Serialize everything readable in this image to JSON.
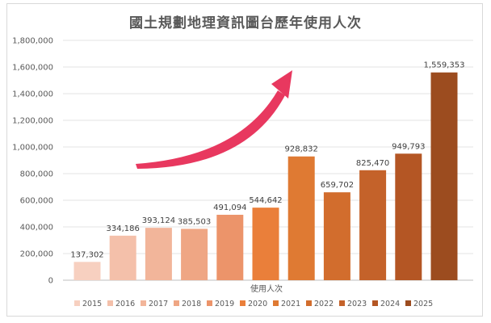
{
  "chart_data": {
    "type": "bar",
    "title": "國土規劃地理資訊圖台歷年使用人次",
    "xlabel": "使用人次",
    "ylabel": "",
    "ylim": [
      0,
      1800000
    ],
    "yticks": [
      "0",
      "200,000",
      "400,000",
      "600,000",
      "800,000",
      "1,000,000",
      "1,200,000",
      "1,400,000",
      "1,600,000",
      "1,800,000"
    ],
    "categories": [
      "2015",
      "2016",
      "2017",
      "2018",
      "2019",
      "2020",
      "2021",
      "2022",
      "2023",
      "2024",
      "2025"
    ],
    "values": [
      137302,
      334186,
      393124,
      385503,
      491094,
      544642,
      928832,
      659702,
      825470,
      949793,
      1559353
    ],
    "data_labels": [
      "137,302",
      "334,186",
      "393,124",
      "385,503",
      "491,094",
      "544,642",
      "928,832",
      "659,702",
      "825,470",
      "949,793",
      "1,559,353"
    ],
    "colors": [
      "#f7d0c0",
      "#f4c0aa",
      "#f2b59a",
      "#efa684",
      "#ec946a",
      "#ea7f3a",
      "#df7a33",
      "#d26d2d",
      "#c4622a",
      "#b45624",
      "#9c4c1f"
    ],
    "grid": true,
    "legend": "bottom",
    "annotation": {
      "type": "arrow",
      "color": "#e8385f"
    }
  }
}
